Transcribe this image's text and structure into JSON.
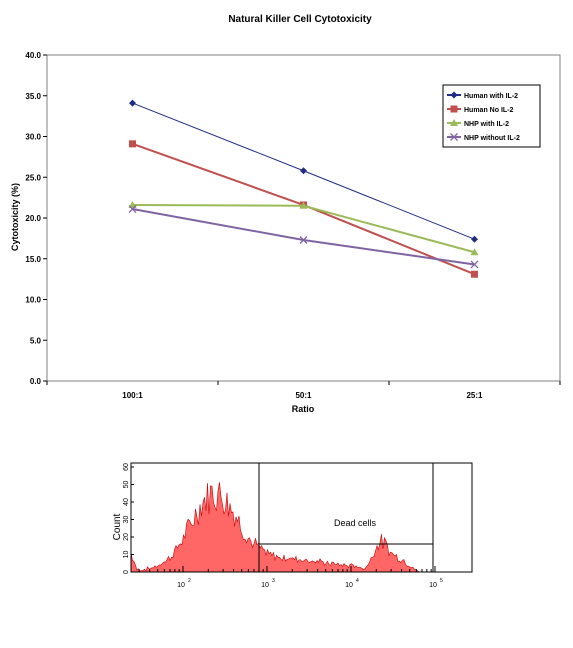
{
  "chart_data": [
    {
      "type": "line",
      "title": "Natural Killer Cell Cytotoxicity",
      "xlabel": "Ratio",
      "ylabel": "Cytotoxicity (%)",
      "categories": [
        "100:1",
        "50:1",
        "25:1"
      ],
      "ylim": [
        0,
        40
      ],
      "yticks": [
        "0.0",
        "5.0",
        "10.0",
        "15.0",
        "20.0",
        "25.0",
        "30.0",
        "35.0",
        "40.0"
      ],
      "grid": false,
      "legend_position": "top-right",
      "series": [
        {
          "name": "Human with IL-2",
          "values": [
            34.1,
            25.8,
            17.4
          ],
          "color": "#1f2d86",
          "marker": "diamond"
        },
        {
          "name": "Human No IL-2",
          "values": [
            29.1,
            21.6,
            13.1
          ],
          "color": "#c0504d",
          "marker": "square"
        },
        {
          "name": "NHP with IL-2",
          "values": [
            21.6,
            21.5,
            15.8
          ],
          "color": "#9bbb59",
          "marker": "triangle"
        },
        {
          "name": "NHP without IL-2",
          "values": [
            21.1,
            17.3,
            14.3
          ],
          "color": "#8064a2",
          "marker": "x"
        }
      ]
    },
    {
      "type": "area",
      "ylabel": "Count",
      "yticks": [
        "0",
        "10",
        "20",
        "30",
        "40",
        "50",
        "60"
      ],
      "xticks": [
        "10",
        "10",
        "10",
        "10"
      ],
      "xtick_exponents": [
        "2",
        "3",
        "4",
        "5"
      ],
      "annotation": "Dead cells",
      "fill_color": "#ff6666"
    }
  ]
}
